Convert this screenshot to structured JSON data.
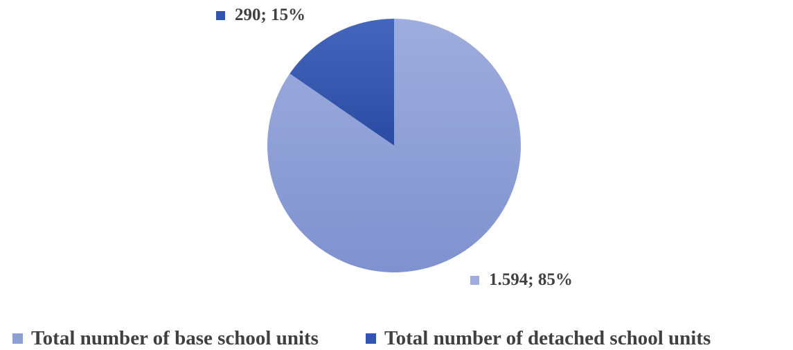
{
  "chart_data": {
    "type": "pie",
    "slices": [
      {
        "name": "Total number of base school units",
        "value": 1594,
        "percent": 85,
        "label": "1.594; 85%",
        "color": "#8e9fd6",
        "color_light": "#9eadde",
        "color_dark": "#7f92cf"
      },
      {
        "name": "Total number of detached school units",
        "value": 290,
        "percent": 15,
        "label": "290; 15%",
        "color": "#3354b0",
        "color_light": "#4466bc",
        "color_dark": "#2b4ba3"
      }
    ],
    "legend_position": "bottom",
    "data_labels": "outside, value; percent"
  }
}
